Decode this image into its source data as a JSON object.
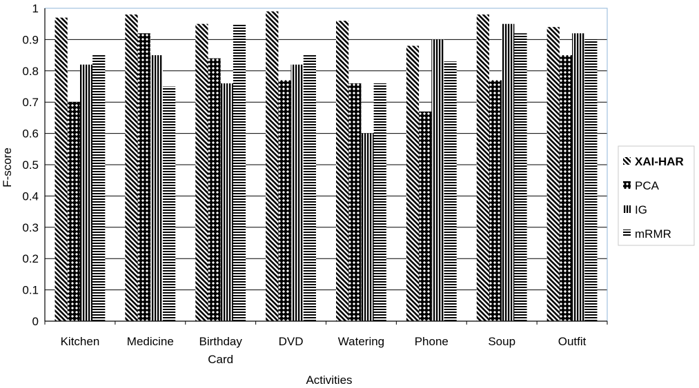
{
  "chart_data": {
    "type": "bar",
    "title": "",
    "xlabel": "Activities",
    "ylabel": "F-score",
    "ylim": [
      0,
      1
    ],
    "yticks": [
      0,
      0.1,
      0.2,
      0.3,
      0.4,
      0.5,
      0.6,
      0.7,
      0.8,
      0.9,
      1
    ],
    "ytick_labels": [
      "0",
      "0.1",
      "0.2",
      "0.3",
      "0.4",
      "0.5",
      "0.6",
      "0.7",
      "0.8",
      "0.9",
      "1"
    ],
    "categories": [
      [
        "Kitchen"
      ],
      [
        "Medicine"
      ],
      [
        "Birthday",
        "Card"
      ],
      [
        "DVD"
      ],
      [
        "Watering"
      ],
      [
        "Phone"
      ],
      [
        "Soup"
      ],
      [
        "Outfit"
      ]
    ],
    "series": [
      {
        "name": "XAI-HAR",
        "pattern": "diagonal",
        "values": [
          0.97,
          0.98,
          0.95,
          0.99,
          0.96,
          0.88,
          0.98,
          0.94
        ]
      },
      {
        "name": "PCA",
        "pattern": "crosshatch",
        "values": [
          0.7,
          0.92,
          0.84,
          0.77,
          0.76,
          0.67,
          0.77,
          0.85
        ]
      },
      {
        "name": "IG",
        "pattern": "vertical",
        "values": [
          0.82,
          0.85,
          0.76,
          0.82,
          0.6,
          0.9,
          0.95,
          0.92
        ]
      },
      {
        "name": "mRMR",
        "pattern": "horizontal",
        "values": [
          0.85,
          0.75,
          0.95,
          0.85,
          0.76,
          0.83,
          0.92,
          0.9
        ]
      }
    ],
    "grid": true,
    "legend_position": "right"
  }
}
